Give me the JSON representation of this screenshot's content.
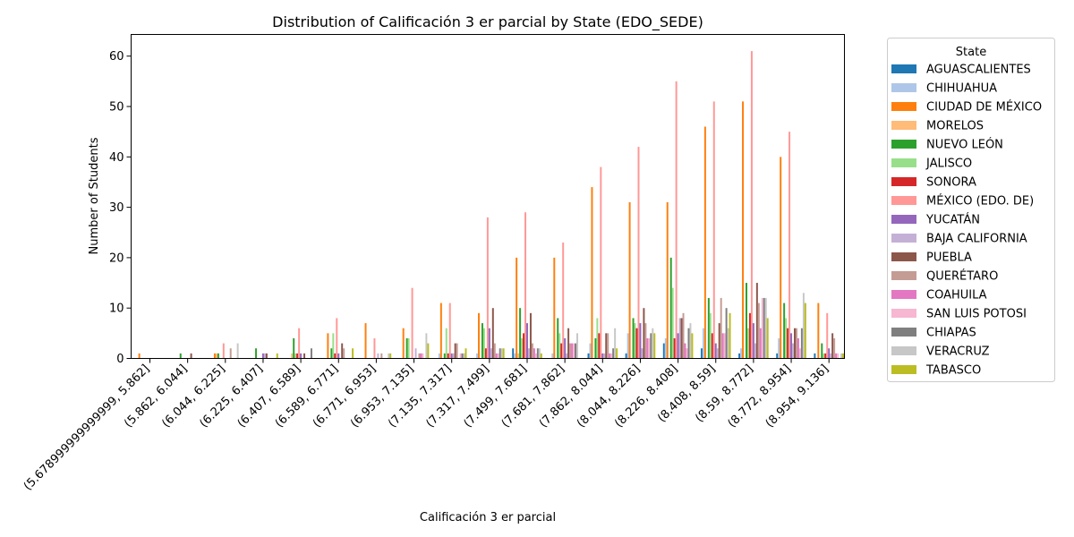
{
  "chart_data": {
    "type": "bar",
    "title": "Distribution of Calificación 3 er parcial by State (EDO_SEDE)",
    "xlabel": "Calificación 3 er parcial",
    "ylabel": "Number of Students",
    "ylim": [
      0,
      64.3
    ],
    "yticks": [
      0,
      10,
      20,
      30,
      40,
      50,
      60
    ],
    "grid": false,
    "legend_title": "State",
    "legend_position": "outside-right",
    "categories": [
      "(5.678999999999999, 5.862]",
      "(5.862, 6.044]",
      "(6.044, 6.225]",
      "(6.225, 6.407]",
      "(6.407, 6.589]",
      "(6.589, 6.771]",
      "(6.771, 6.953]",
      "(6.953, 7.135]",
      "(7.135, 7.317]",
      "(7.317, 7.499]",
      "(7.499, 7.681]",
      "(7.681, 7.862]",
      "(7.862, 8.044]",
      "(8.044, 8.226]",
      "(8.226, 8.408]",
      "(8.408, 8.59]",
      "(8.59, 8.772]",
      "(8.772, 8.954]",
      "(8.954, 9.136]"
    ],
    "series": [
      {
        "name": "AGUASCALIENTES",
        "color": "#1f77b4",
        "values": [
          0,
          0,
          0,
          0,
          0,
          0,
          0,
          0,
          0,
          0,
          2,
          0,
          1,
          1,
          3,
          2,
          1,
          1,
          1
        ]
      },
      {
        "name": "CHIHUAHUA",
        "color": "#aec7e8",
        "values": [
          0,
          0,
          0,
          0,
          0,
          0,
          0,
          0,
          1,
          1,
          1,
          1,
          3,
          5,
          4,
          6,
          2,
          4,
          0
        ]
      },
      {
        "name": "CIUDAD DE MÉXICO",
        "color": "#ff7f0e",
        "values": [
          1,
          0,
          1,
          0,
          0,
          5,
          7,
          6,
          11,
          9,
          20,
          20,
          34,
          31,
          31,
          46,
          51,
          40,
          11
        ]
      },
      {
        "name": "MORELOS",
        "color": "#ffbb78",
        "values": [
          0,
          0,
          1,
          0,
          1,
          0,
          0,
          0,
          0,
          0,
          1,
          0,
          0,
          0,
          0,
          0,
          0,
          0,
          0
        ]
      },
      {
        "name": "NUEVO LEÓN",
        "color": "#2ca02c",
        "values": [
          0,
          1,
          1,
          2,
          4,
          2,
          0,
          4,
          1,
          7,
          10,
          8,
          4,
          8,
          20,
          12,
          15,
          11,
          3
        ]
      },
      {
        "name": "JALISCO",
        "color": "#98df8a",
        "values": [
          0,
          0,
          0,
          0,
          1,
          5,
          0,
          4,
          6,
          6,
          4,
          5,
          8,
          7,
          14,
          9,
          6,
          8,
          1
        ]
      },
      {
        "name": "SONORA",
        "color": "#d62728",
        "values": [
          0,
          0,
          0,
          0,
          1,
          1,
          0,
          0,
          1,
          2,
          5,
          3,
          5,
          6,
          4,
          5,
          9,
          6,
          1
        ]
      },
      {
        "name": "MÉXICO (EDO. DE)",
        "color": "#ff9896",
        "values": [
          0,
          0,
          3,
          0,
          6,
          8,
          4,
          14,
          11,
          28,
          29,
          23,
          38,
          42,
          55,
          51,
          61,
          45,
          9
        ]
      },
      {
        "name": "YUCATÁN",
        "color": "#9467bd",
        "values": [
          0,
          0,
          0,
          1,
          1,
          1,
          0,
          0,
          1,
          6,
          7,
          4,
          1,
          7,
          5,
          3,
          7,
          5,
          2
        ]
      },
      {
        "name": "BAJA CALIFORNIA",
        "color": "#c5b0d5",
        "values": [
          0,
          0,
          0,
          1,
          0,
          0,
          1,
          2,
          1,
          2,
          2,
          1,
          1,
          2,
          8,
          2,
          3,
          3,
          1
        ]
      },
      {
        "name": "PUEBLA",
        "color": "#8c564b",
        "values": [
          0,
          1,
          0,
          1,
          1,
          3,
          0,
          0,
          3,
          10,
          9,
          6,
          5,
          10,
          8,
          7,
          15,
          6,
          5
        ]
      },
      {
        "name": "QUERÉTARO",
        "color": "#c49c94",
        "values": [
          0,
          0,
          2,
          0,
          0,
          2,
          1,
          1,
          3,
          3,
          3,
          3,
          5,
          7,
          9,
          12,
          11,
          6,
          4
        ]
      },
      {
        "name": "COAHUILA",
        "color": "#e377c2",
        "values": [
          0,
          0,
          0,
          0,
          0,
          0,
          0,
          1,
          0,
          1,
          2,
          3,
          1,
          4,
          3,
          5,
          6,
          4,
          1
        ]
      },
      {
        "name": "SAN LUIS POTOSI",
        "color": "#f7b6d2",
        "values": [
          0,
          0,
          0,
          0,
          0,
          0,
          0,
          1,
          1,
          1,
          1,
          3,
          1,
          4,
          2,
          5,
          12,
          2,
          1
        ]
      },
      {
        "name": "CHIAPAS",
        "color": "#7f7f7f",
        "values": [
          0,
          0,
          0,
          0,
          2,
          0,
          0,
          0,
          1,
          2,
          2,
          3,
          2,
          5,
          6,
          10,
          12,
          6,
          0
        ]
      },
      {
        "name": "VERACRUZ",
        "color": "#c7c7c7",
        "values": [
          0,
          0,
          3,
          0,
          0,
          0,
          1,
          5,
          1,
          2,
          2,
          5,
          6,
          6,
          7,
          6,
          12,
          13,
          1
        ]
      },
      {
        "name": "TABASCO",
        "color": "#bcbd22",
        "values": [
          0,
          0,
          0,
          1,
          0,
          2,
          1,
          3,
          2,
          2,
          1,
          0,
          2,
          5,
          5,
          9,
          8,
          11,
          1
        ]
      }
    ]
  }
}
